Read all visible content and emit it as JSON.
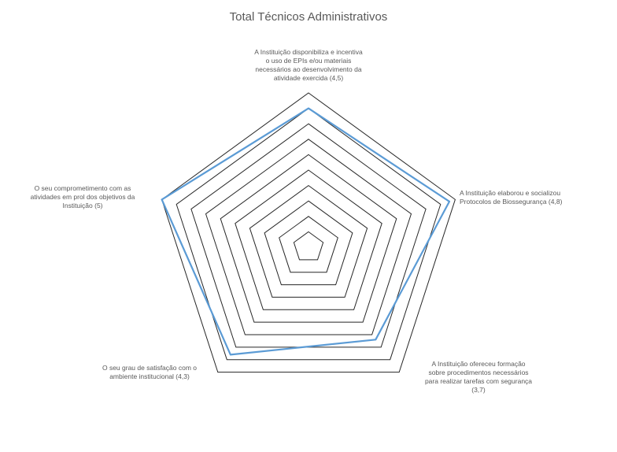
{
  "chart_data": {
    "type": "radar",
    "title": "Total Técnicos Administrativos",
    "categories": [
      "A Instituição disponibiliza e incentiva o uso de EPIs e/ou materiais necessários ao desenvolvimento da atividade exercida (4,5)",
      "A Instituição elaborou e socializou Protocolos de Biossegurança (4,8)",
      "A Instituição ofereceu formação sobre procedimentos necessários para realizar tarefas com segurança (3,7)",
      "O seu grau de satisfação com o ambiente institucional (4,3)",
      "O seu comprometimento com as atividades em prol dos objetivos da Instituição (5)"
    ],
    "category_lines": [
      [
        "A Instituição disponibiliza e incentiva",
        "o uso de EPIs e/ou materiais",
        "necessários ao desenvolvimento da",
        "atividade exercida (4,5)"
      ],
      [
        "A Instituição elaborou e socializou",
        "Protocolos de Biossegurança (4,8)"
      ],
      [
        "A Instituição ofereceu formação",
        "sobre procedimentos necessários",
        "para realizar tarefas com segurança",
        "(3,7)"
      ],
      [
        "O seu grau de satisfação com o",
        "ambiente institucional (4,3)"
      ],
      [
        "O seu comprometimento com as",
        "atividades em prol dos objetivos da",
        "Instituição (5)"
      ]
    ],
    "series": [
      {
        "values": [
          4.5,
          4.8,
          3.7,
          4.3,
          5.0
        ],
        "color": "#5b9bd5"
      }
    ],
    "rlim": [
      0,
      5
    ],
    "rings": 10,
    "grid": true,
    "legend": false
  }
}
